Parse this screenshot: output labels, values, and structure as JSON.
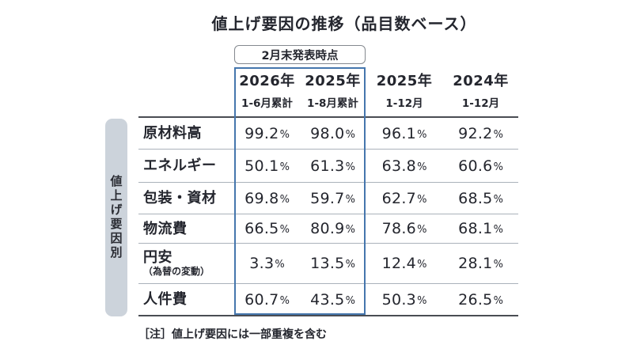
{
  "title": "値上げ要因の推移（品目数ベース）",
  "callout": {
    "label": "2月末発表時点"
  },
  "sidebar": {
    "label": "値上げ要因別"
  },
  "table": {
    "unit": "%",
    "columns": [
      {
        "year": "2026年",
        "period": "1-6月累計",
        "highlighted": true
      },
      {
        "year": "2025年",
        "period": "1-8月累計",
        "highlighted": true
      },
      {
        "year": "2025年",
        "period": "1-12月",
        "highlighted": false
      },
      {
        "year": "2024年",
        "period": "1-12月",
        "highlighted": false
      }
    ],
    "rows": [
      {
        "label": "原材料高",
        "sublabel": "",
        "values": [
          "99.2",
          "98.0",
          "96.1",
          "92.2"
        ]
      },
      {
        "label": "エネルギー",
        "sublabel": "",
        "values": [
          "50.1",
          "61.3",
          "63.8",
          "60.6"
        ]
      },
      {
        "label": "包装・資材",
        "sublabel": "",
        "values": [
          "69.8",
          "59.7",
          "62.7",
          "68.5"
        ]
      },
      {
        "label": "物流費",
        "sublabel": "",
        "values": [
          "66.5",
          "80.9",
          "78.6",
          "68.1"
        ]
      },
      {
        "label": "円安",
        "sublabel": "（為替の変動）",
        "values": [
          "3.3",
          "13.5",
          "12.4",
          "28.1"
        ]
      },
      {
        "label": "人件費",
        "sublabel": "",
        "values": [
          "60.7",
          "43.5",
          "50.3",
          "26.5"
        ]
      }
    ]
  },
  "note": "［注］値上げ要因には一部重複を含む",
  "colors": {
    "highlight_border": "#4576ad",
    "sidebar_fill": "#ccd3db",
    "text": "#24262e",
    "row_divider": "#aab2ba",
    "table_border": "#4a4d53"
  },
  "chart_data": {
    "type": "table",
    "title": "値上げ要因の推移（品目数ベース）",
    "columns": [
      "2026年 1-6月累計",
      "2025年 1-8月累計",
      "2025年 1-12月",
      "2024年 1-12月"
    ],
    "categories": [
      "原材料高",
      "エネルギー",
      "包装・資材",
      "物流費",
      "円安（為替の変動）",
      "人件費"
    ],
    "series": [
      {
        "name": "2026年 1-6月累計",
        "values": [
          99.2,
          50.1,
          69.8,
          66.5,
          3.3,
          60.7
        ]
      },
      {
        "name": "2025年 1-8月累計",
        "values": [
          98.0,
          61.3,
          59.7,
          80.9,
          13.5,
          43.5
        ]
      },
      {
        "name": "2025年 1-12月",
        "values": [
          96.1,
          63.8,
          62.7,
          78.6,
          12.4,
          50.3
        ]
      },
      {
        "name": "2024年 1-12月",
        "values": [
          92.2,
          60.6,
          68.5,
          68.1,
          28.1,
          26.5
        ]
      }
    ],
    "unit": "%",
    "annotations": [
      "2月末発表時点",
      "値上げ要因別",
      "［注］値上げ要因には一部重複を含む"
    ]
  }
}
